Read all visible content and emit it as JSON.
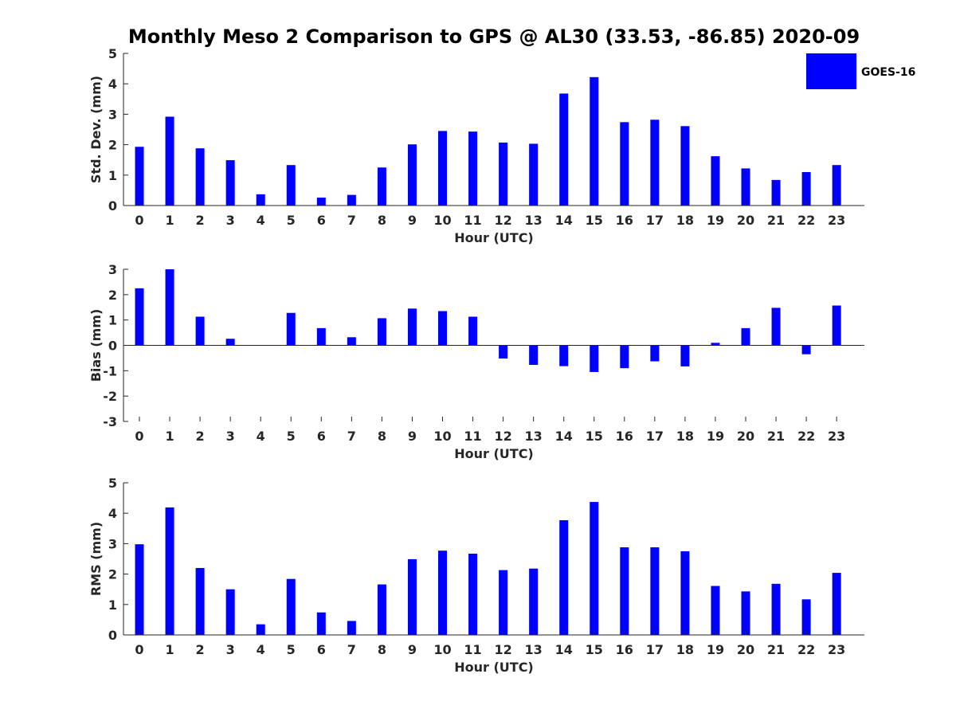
{
  "chart_data": {
    "title": "Monthly Meso 2 Comparison to GPS @ AL30 (33.53, -86.85) 2020-09",
    "legend": {
      "label": "GOES-16",
      "color": "#0000FF",
      "position": "top-right"
    },
    "panels": [
      {
        "type": "bar",
        "ylabel": "Std. Dev. (mm)",
        "xlabel": "Hour (UTC)",
        "ylim": [
          0,
          5
        ],
        "yticks": [
          0,
          1,
          2,
          3,
          4,
          5
        ],
        "categories": [
          "0",
          "1",
          "2",
          "3",
          "4",
          "5",
          "6",
          "7",
          "8",
          "9",
          "10",
          "11",
          "12",
          "13",
          "14",
          "15",
          "16",
          "17",
          "18",
          "19",
          "20",
          "21",
          "22",
          "23"
        ],
        "values": [
          1.93,
          2.92,
          1.88,
          1.49,
          0.37,
          1.33,
          0.26,
          0.35,
          1.25,
          2.01,
          2.45,
          2.43,
          2.07,
          2.03,
          3.68,
          4.22,
          2.74,
          2.82,
          2.61,
          1.62,
          1.22,
          0.84,
          1.1,
          1.33
        ]
      },
      {
        "type": "bar",
        "ylabel": "Bias (mm)",
        "xlabel": "Hour (UTC)",
        "ylim": [
          -3,
          3
        ],
        "yticks": [
          -3,
          -2,
          -1,
          0,
          1,
          2,
          3
        ],
        "categories": [
          "0",
          "1",
          "2",
          "3",
          "4",
          "5",
          "6",
          "7",
          "8",
          "9",
          "10",
          "11",
          "12",
          "13",
          "14",
          "15",
          "16",
          "17",
          "18",
          "19",
          "20",
          "21",
          "22",
          "23"
        ],
        "values": [
          2.25,
          3.0,
          1.13,
          0.26,
          0.0,
          1.28,
          0.68,
          0.32,
          1.07,
          1.45,
          1.35,
          1.13,
          -0.52,
          -0.77,
          -0.82,
          -1.05,
          -0.9,
          -0.63,
          -0.83,
          0.1,
          0.68,
          1.48,
          -0.35,
          1.57
        ]
      },
      {
        "type": "bar",
        "ylabel": "RMS (mm)",
        "xlabel": "Hour (UTC)",
        "ylim": [
          0,
          5
        ],
        "yticks": [
          0,
          1,
          2,
          3,
          4,
          5
        ],
        "categories": [
          "0",
          "1",
          "2",
          "3",
          "4",
          "5",
          "6",
          "7",
          "8",
          "9",
          "10",
          "11",
          "12",
          "13",
          "14",
          "15",
          "16",
          "17",
          "18",
          "19",
          "20",
          "21",
          "22",
          "23"
        ],
        "values": [
          2.98,
          4.19,
          2.2,
          1.5,
          0.35,
          1.84,
          0.74,
          0.46,
          1.66,
          2.49,
          2.77,
          2.67,
          2.13,
          2.18,
          3.77,
          4.37,
          2.88,
          2.88,
          2.75,
          1.61,
          1.43,
          1.68,
          1.17,
          2.04
        ]
      }
    ]
  }
}
